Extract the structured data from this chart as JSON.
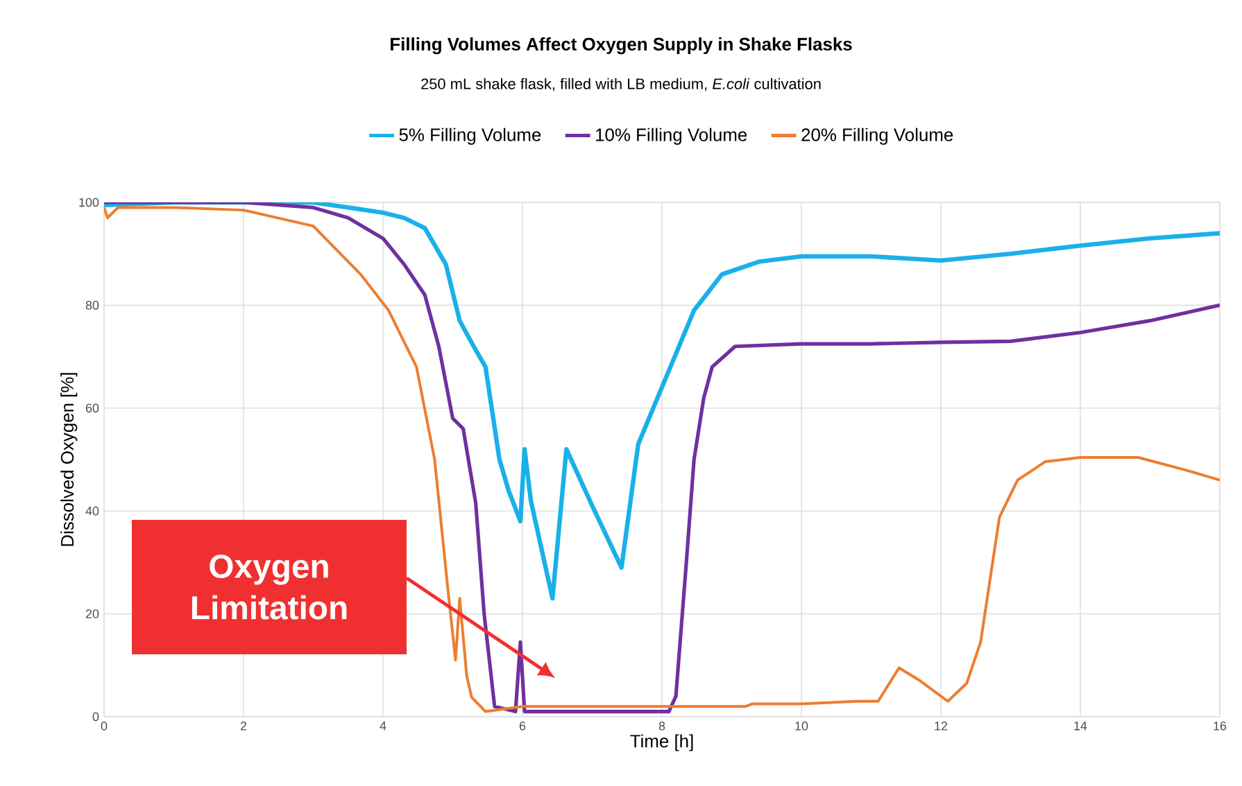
{
  "chart_data": {
    "type": "line",
    "title": "Filling Volumes Affect Oxygen Supply in Shake Flasks",
    "subtitle": "250 mL shake flask, filled with LB medium, *E.coli* cultivation",
    "xlabel": "Time [h]",
    "ylabel": "Dissolved Oxygen [%]",
    "xlim": [
      0,
      16
    ],
    "ylim": [
      0,
      100
    ],
    "xticks": [
      0,
      2,
      4,
      6,
      8,
      10,
      12,
      14,
      16
    ],
    "yticks": [
      0,
      20,
      40,
      60,
      80,
      100
    ],
    "grid": true,
    "legend": "top",
    "annotations": [
      "Oxygen Limitation"
    ],
    "series": [
      {
        "name": "5% Filling Volume",
        "color": "#1ab0e8",
        "x": [
          0,
          1,
          2,
          3,
          3.5,
          4,
          4.3,
          4.6,
          4.9,
          5.1,
          5.3,
          5.47,
          5.67,
          5.8,
          5.97,
          6.03,
          6.12,
          6.43,
          6.63,
          7.0,
          7.42,
          7.66,
          8.06,
          8.46,
          8.86,
          9.4,
          10,
          11,
          12,
          13,
          14,
          15,
          16
        ],
        "values": [
          99.5,
          100,
          100,
          100,
          99,
          98,
          97,
          95,
          88,
          77,
          72,
          68,
          50,
          44,
          38,
          52,
          42,
          23,
          52,
          41,
          29,
          53,
          66,
          79,
          86,
          88.5,
          89.5,
          89.5,
          88.7,
          90,
          91.6,
          93,
          94
        ]
      },
      {
        "name": "10% Filling Volume",
        "color": "#7030a0",
        "x": [
          0,
          1,
          2,
          3,
          3.5,
          4,
          4.3,
          4.6,
          4.8,
          5.0,
          5.15,
          5.33,
          5.45,
          5.6,
          5.9,
          5.97,
          6.03,
          7,
          8.1,
          8.2,
          8.35,
          8.46,
          8.6,
          8.72,
          9.05,
          10,
          11,
          12,
          13,
          14,
          15,
          16
        ],
        "values": [
          100,
          100,
          100,
          99,
          97,
          93,
          88,
          82,
          72,
          58,
          56,
          41.5,
          20,
          2,
          1,
          14.5,
          1,
          1,
          1,
          4,
          30,
          50,
          62,
          68,
          72,
          72.5,
          72.5,
          72.8,
          73,
          74.7,
          77,
          80
        ]
      },
      {
        "name": "20% Filling Volume",
        "color": "#ed7d31",
        "x": [
          0,
          0.05,
          0.2,
          1,
          2,
          3,
          3.68,
          4.08,
          4.48,
          4.74,
          4.94,
          5.04,
          5.1,
          5.2,
          5.27,
          5.47,
          6,
          7,
          8,
          9.2,
          9.3,
          10,
          10.8,
          11.1,
          11.4,
          11.7,
          12.1,
          12.37,
          12.57,
          12.84,
          13.1,
          13.5,
          14,
          14.83,
          15.5,
          16
        ],
        "values": [
          99,
          97,
          99,
          99,
          98.5,
          95.4,
          86,
          79,
          68,
          50,
          23.5,
          11,
          23,
          8,
          3.8,
          1,
          2,
          2,
          2,
          2,
          2.5,
          2.5,
          3,
          3,
          9.5,
          7,
          3,
          6.5,
          14.5,
          38.8,
          46,
          49.6,
          50.4,
          50.4,
          48,
          46
        ]
      }
    ]
  }
}
